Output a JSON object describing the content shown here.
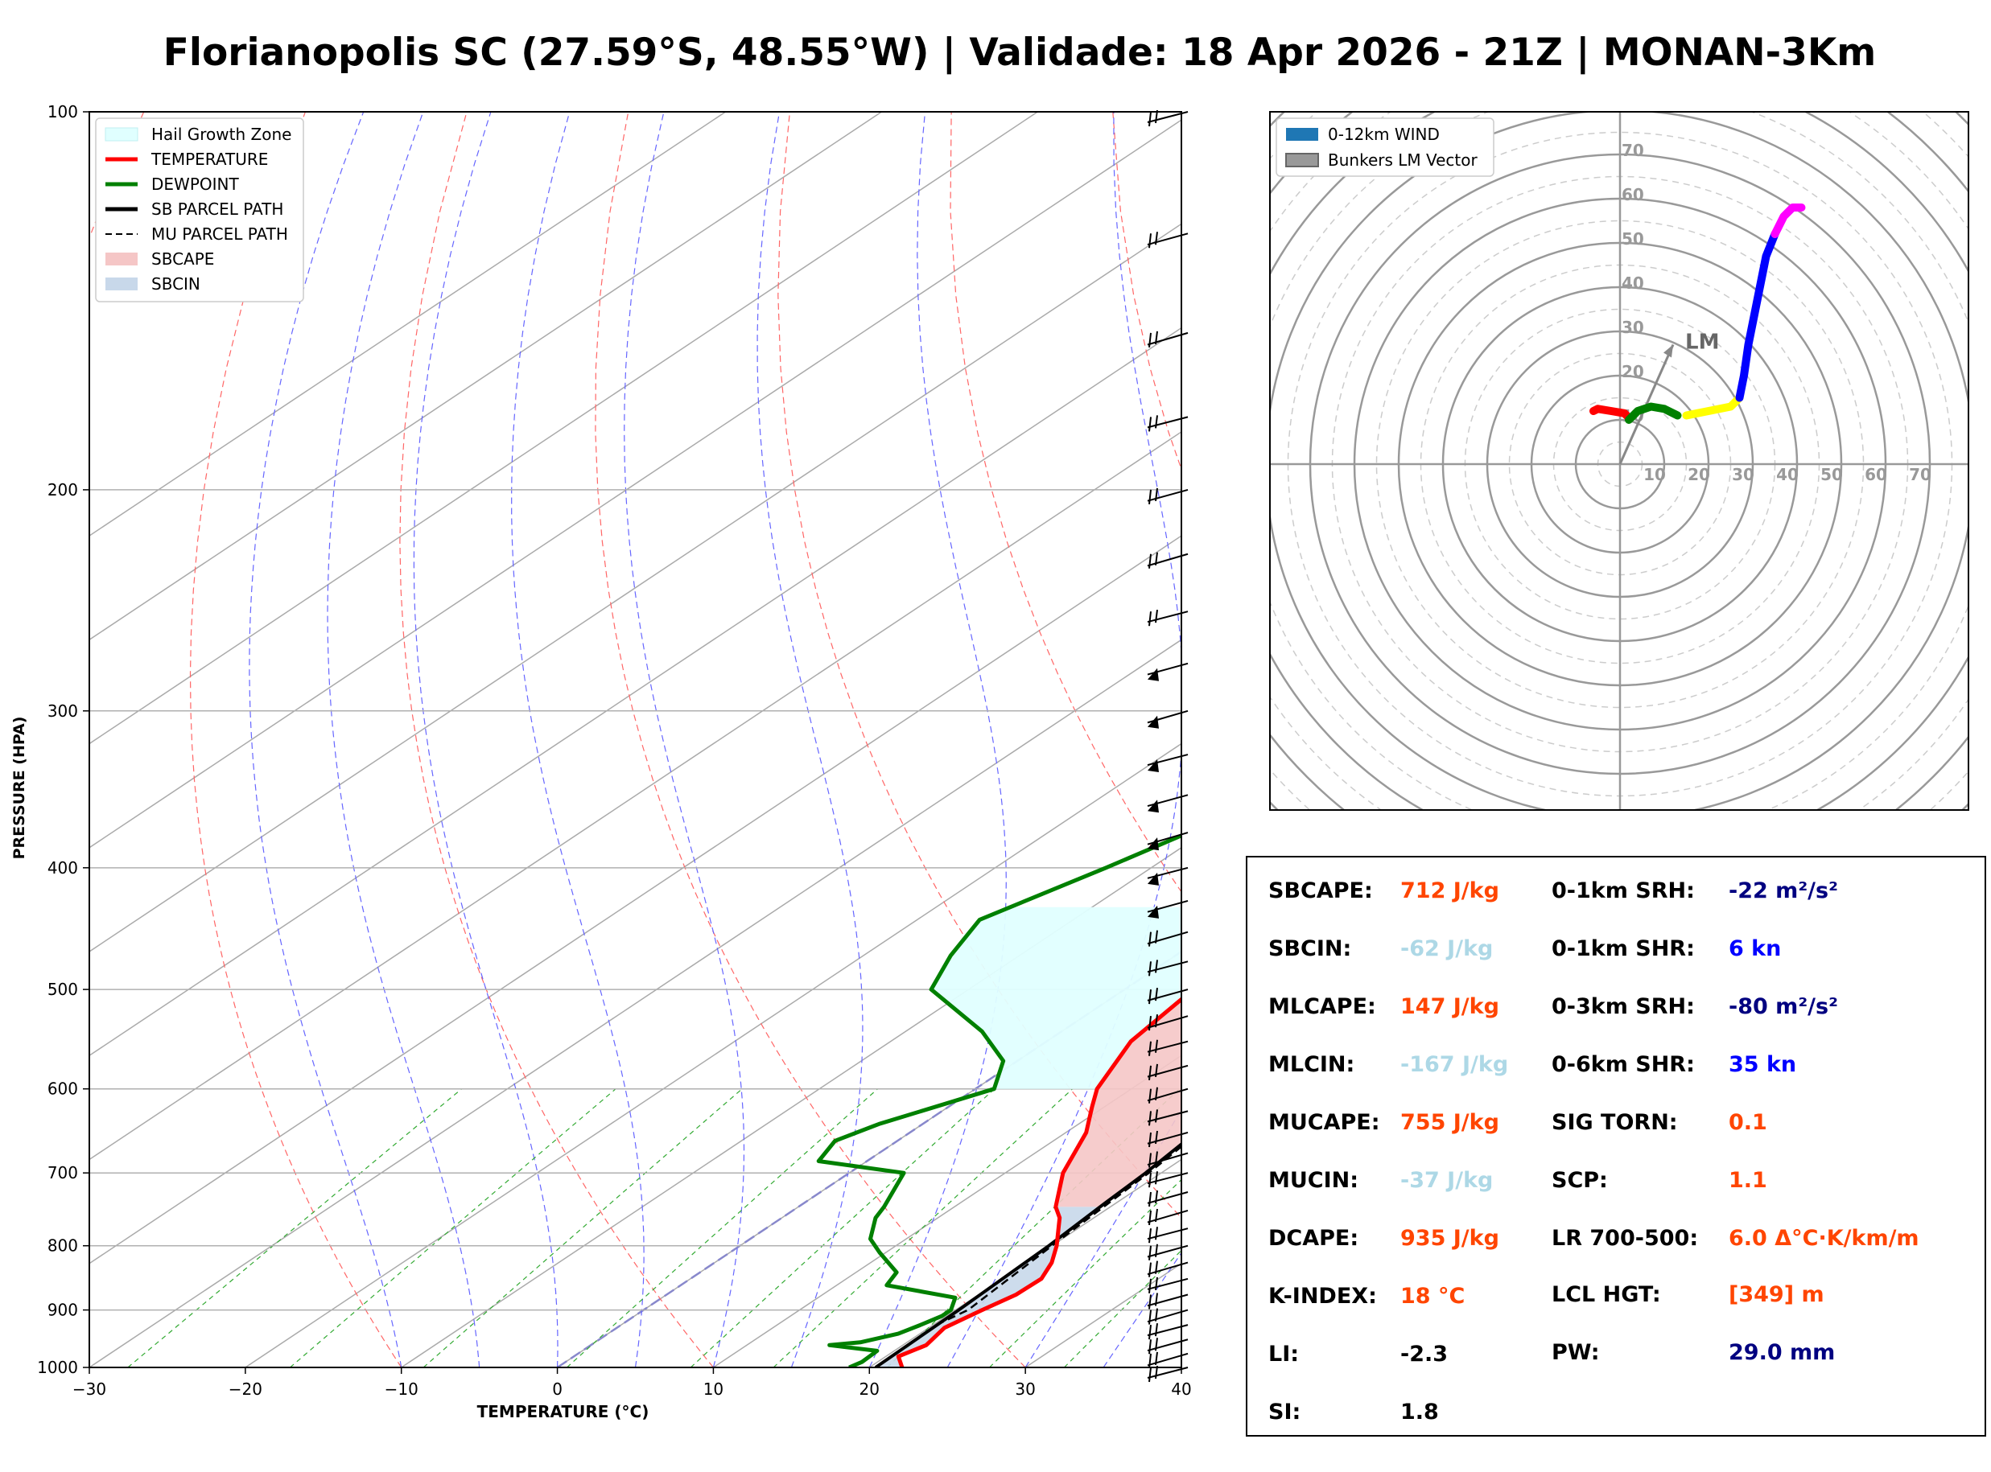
{
  "title": "Florianopolis SC (27.59°S, 48.55°W) | Validade: 18 Apr 2026 - 21Z | MONAN-3Km",
  "chart_data": [
    {
      "type": "line",
      "subtype": "skew-t log-p sounding",
      "xlabel": "TEMPERATURE (°C)",
      "ylabel": "PRESSURE (HPA)",
      "xlim": [
        -30,
        40
      ],
      "ylim": [
        1000,
        100
      ],
      "x_ticks": [
        "−30",
        "−20",
        "−10",
        "0",
        "10",
        "20",
        "30",
        "40"
      ],
      "x_tick_values": [
        -30,
        -20,
        -10,
        0,
        10,
        20,
        30,
        40
      ],
      "y_ticks": [
        "1000",
        "900",
        "800",
        "700",
        "600",
        "500",
        "400",
        "300",
        "200",
        "100"
      ],
      "y_tick_values": [
        1000,
        900,
        800,
        700,
        600,
        500,
        400,
        300,
        200,
        100
      ],
      "legend": {
        "placement": "top-left",
        "entries": [
          {
            "label": "Hail Growth Zone",
            "color": "#e0ffff"
          },
          {
            "label": "TEMPERATURE",
            "color": "#ff0000"
          },
          {
            "label": "DEWPOINT",
            "color": "#008000"
          },
          {
            "label": "SB PARCEL PATH",
            "color": "#000000"
          },
          {
            "label": "MU PARCEL PATH",
            "color": "#000000"
          },
          {
            "label": "SBCAPE",
            "color": "#f5c6c6"
          },
          {
            "label": "SBCIN",
            "color": "#c8d8ea"
          }
        ]
      },
      "series": [
        {
          "name": "TEMPERATURE",
          "color": "#ff0000",
          "points": [
            [
              1000,
              22.1
            ],
            [
              980,
              20.8
            ],
            [
              960,
              21.5
            ],
            [
              930,
              21.0
            ],
            [
              900,
              21.7
            ],
            [
              875,
              22.4
            ],
            [
              850,
              22.5
            ],
            [
              825,
              21.6
            ],
            [
              800,
              20.3
            ],
            [
              760,
              17.8
            ],
            [
              745,
              16.5
            ],
            [
              700,
              13.7
            ],
            [
              650,
              11.3
            ],
            [
              620,
              9.2
            ],
            [
              600,
              7.8
            ],
            [
              550,
              5.4
            ],
            [
              500,
              4.4
            ],
            [
              475,
              2.6
            ],
            [
              440,
              0.2
            ],
            [
              420,
              -1.5
            ],
            [
              385,
              -4.8
            ],
            [
              350,
              -8.3
            ],
            [
              310,
              -13.3
            ],
            [
              270,
              -19.5
            ],
            [
              250,
              -23.8
            ],
            [
              225,
              -30.1
            ],
            [
              210,
              -35.0
            ],
            [
              190,
              -40.7
            ],
            [
              172,
              -46.0
            ],
            [
              153,
              -51.2
            ],
            [
              133,
              -55.6
            ],
            [
              117,
              -57.5
            ],
            [
              100,
              -62.3
            ]
          ]
        },
        {
          "name": "DEWPOINT",
          "color": "#008000",
          "points": [
            [
              1000,
              18.7
            ],
            [
              990,
              19.0
            ],
            [
              970,
              18.9
            ],
            [
              960,
              15.3
            ],
            [
              955,
              17.0
            ],
            [
              940,
              18.6
            ],
            [
              925,
              19.2
            ],
            [
              910,
              19.7
            ],
            [
              900,
              19.7
            ],
            [
              880,
              18.8
            ],
            [
              860,
              13.2
            ],
            [
              840,
              12.6
            ],
            [
              810,
              9.6
            ],
            [
              790,
              7.7
            ],
            [
              760,
              6.0
            ],
            [
              745,
              5.5
            ],
            [
              700,
              3.5
            ],
            [
              685,
              -3.1
            ],
            [
              660,
              -4.0
            ],
            [
              640,
              -2.8
            ],
            [
              600,
              1.2
            ],
            [
              570,
              -0.9
            ],
            [
              540,
              -5.1
            ],
            [
              500,
              -12.4
            ],
            [
              470,
              -14.4
            ],
            [
              440,
              -16.0
            ],
            [
              400,
              -12.9
            ],
            [
              360,
              -9.8
            ],
            [
              340,
              -10.0
            ],
            [
              310,
              -13.2
            ],
            [
              290,
              -14.5
            ],
            [
              270,
              -17.6
            ],
            [
              230,
              -19.8
            ],
            [
              200,
              -23.8
            ],
            [
              178,
              -27.8
            ],
            [
              160,
              -29.1
            ],
            [
              142,
              -36.0
            ],
            [
              130,
              -41.3
            ],
            [
              113,
              -47.3
            ],
            [
              100,
              -49.4
            ]
          ]
        },
        {
          "name": "SB PARCEL PATH",
          "color": "#000000",
          "style": "solid",
          "points": [
            [
              1000,
              20.4
            ],
            [
              900,
              20.2
            ],
            [
              800,
              19.8
            ],
            [
              740,
              19.3
            ],
            [
              700,
              19.0
            ],
            [
              600,
              17.6
            ],
            [
              500,
              14.0
            ],
            [
              450,
              11.0
            ],
            [
              400,
              7.0
            ],
            [
              350,
              1.6
            ],
            [
              300,
              -5.5
            ],
            [
              270,
              -11.0
            ],
            [
              250,
              -15.3
            ],
            [
              225,
              -21.6
            ],
            [
              200,
              -29.3
            ],
            [
              175,
              -38.5
            ],
            [
              150,
              -49.5
            ],
            [
              125,
              -62.6
            ],
            [
              110,
              -71.4
            ],
            [
              100,
              -78.0
            ]
          ]
        },
        {
          "name": "MU PARCEL PATH",
          "color": "#000000",
          "style": "dashed",
          "points": [
            [
              925,
              20.2
            ],
            [
              900,
              20.8
            ],
            [
              800,
              20.0
            ],
            [
              700,
              19.2
            ],
            [
              600,
              17.8
            ],
            [
              500,
              14.2
            ],
            [
              400,
              7.2
            ],
            [
              300,
              -5.3
            ],
            [
              200,
              -29.1
            ],
            [
              100,
              -77.8
            ]
          ]
        }
      ],
      "shaded_regions": [
        {
          "name": "Hail Growth Zone",
          "color": "#e0ffff",
          "top_hpa": 430,
          "bottom_hpa": 600
        },
        {
          "name": "SBCAPE",
          "color": "#f5c6c6",
          "from_hpa": 745,
          "to_hpa": 270
        },
        {
          "name": "SBCIN",
          "color": "#c8d8ea",
          "from_hpa": 1000,
          "to_hpa": 745
        }
      ],
      "wind_barbs_hpa": [
        100,
        125,
        150,
        175,
        200,
        225,
        250,
        275,
        300,
        325,
        350,
        375,
        400,
        425,
        450,
        475,
        500,
        525,
        550,
        575,
        600,
        625,
        650,
        675,
        700,
        725,
        750,
        775,
        800,
        825,
        850,
        875,
        900,
        925,
        950,
        975,
        1000
      ]
    },
    {
      "type": "scatter",
      "subtype": "hodograph",
      "rings": [
        10,
        20,
        30,
        40,
        50,
        60,
        70
      ],
      "ring_labels_vertical": [
        "10",
        "20",
        "30",
        "40",
        "50",
        "60",
        "70"
      ],
      "ring_labels_horizontal": [
        "10",
        "20",
        "30",
        "40",
        "50",
        "60",
        "70"
      ],
      "legend": {
        "placement": "top-left",
        "entries": [
          {
            "label": "0-12km WIND",
            "color": "#1f77b4"
          },
          {
            "label": "Bunkers LM Vector",
            "color": "#999999"
          }
        ]
      },
      "bunkers_lm": {
        "label": "LM",
        "u": 12,
        "v": 27
      },
      "segments": [
        {
          "layer": "0-1km",
          "color": "#ff0000",
          "points": [
            [
              -6,
              12
            ],
            [
              -5,
              12.5
            ],
            [
              -2,
              12
            ],
            [
              1,
              11.5
            ],
            [
              2,
              10.5
            ]
          ]
        },
        {
          "layer": "1-3km",
          "color": "#008000",
          "points": [
            [
              2,
              10
            ],
            [
              4,
              12
            ],
            [
              7,
              13
            ],
            [
              10,
              12.5
            ],
            [
              13,
              11
            ]
          ]
        },
        {
          "layer": "3-6km",
          "color": "#ffff00",
          "points": [
            [
              15,
              11
            ],
            [
              20,
              12
            ],
            [
              25,
              13
            ],
            [
              27,
              15
            ]
          ]
        },
        {
          "layer": "6-9km",
          "color": "#0000ff",
          "points": [
            [
              27,
              15
            ],
            [
              28,
              20
            ],
            [
              29,
              27
            ],
            [
              31,
              37
            ],
            [
              33,
              47
            ],
            [
              35,
              52
            ]
          ]
        },
        {
          "layer": "9-12km",
          "color": "#ff00ff",
          "points": [
            [
              35,
              52
            ],
            [
              37,
              56
            ],
            [
              39,
              58
            ],
            [
              41,
              58
            ]
          ]
        }
      ]
    }
  ],
  "stats": {
    "left": [
      {
        "label": "SBCAPE:",
        "value": "712 J/kg",
        "color": "#ff4500"
      },
      {
        "label": "SBCIN:",
        "value": "-62 J/kg",
        "color": "#add8e6"
      },
      {
        "label": "MLCAPE:",
        "value": "147 J/kg",
        "color": "#ff4500"
      },
      {
        "label": "MLCIN:",
        "value": "-167 J/kg",
        "color": "#add8e6"
      },
      {
        "label": "MUCAPE:",
        "value": "755 J/kg",
        "color": "#ff4500"
      },
      {
        "label": "MUCIN:",
        "value": "-37 J/kg",
        "color": "#add8e6"
      },
      {
        "label": "DCAPE:",
        "value": "935 J/kg",
        "color": "#ff4500"
      },
      {
        "label": "K-INDEX:",
        "value": "18 °C",
        "color": "#ff4500"
      },
      {
        "label": "LI:",
        "value": "-2.3",
        "color": "#000000"
      },
      {
        "label": "SI:",
        "value": "1.8",
        "color": "#000000"
      }
    ],
    "right": [
      {
        "label": "0-1km SRH:",
        "value": "-22 m²/s²",
        "color": "#000080"
      },
      {
        "label": "0-1km SHR:",
        "value": "6 kn",
        "color": "#0000ff"
      },
      {
        "label": "0-3km SRH:",
        "value": "-80 m²/s²",
        "color": "#000080"
      },
      {
        "label": "0-6km SHR:",
        "value": "35 kn",
        "color": "#0000ff"
      },
      {
        "label": "SIG TORN:",
        "value": "0.1",
        "color": "#ff4500"
      },
      {
        "label": "SCP:",
        "value": "1.1",
        "color": "#ff4500"
      },
      {
        "label": "LR 700-500:",
        "value": "6.0 Δ°C·K/km/m",
        "color": "#ff4500"
      },
      {
        "label": "LCL HGT:",
        "value": "[349] m",
        "color": "#ff4500"
      },
      {
        "label": "PW:",
        "value": "29.0 mm",
        "color": "#000080"
      }
    ]
  }
}
